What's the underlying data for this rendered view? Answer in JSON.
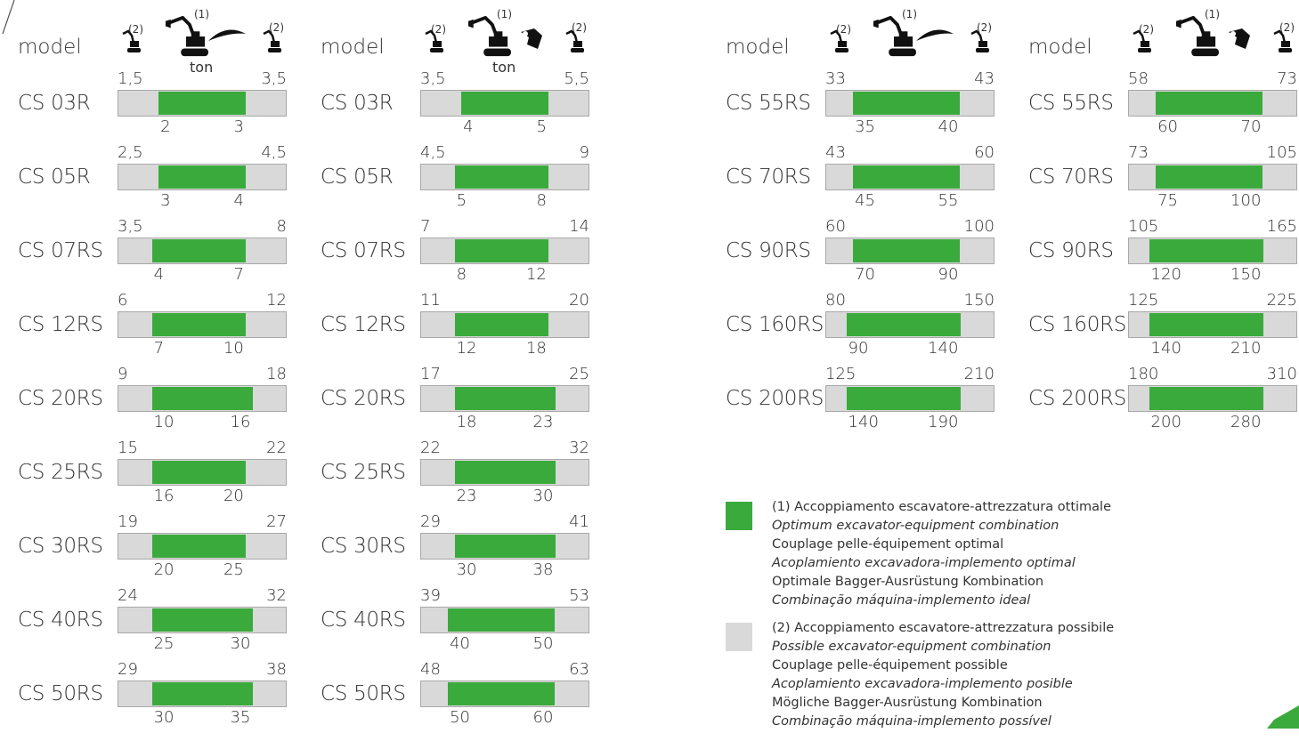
{
  "colors": {
    "optimal": "#3aaa3c",
    "possible": "#d9d9d9"
  },
  "blocks": [
    {
      "header": {
        "model_label": "model",
        "unit": "ton",
        "note_left": "(2)",
        "note_center": "(1)",
        "note_right": "(2)",
        "tool_icon": "breaker-icon"
      },
      "scale": [
        1,
        3
      ],
      "rows": [
        {
          "model": "CS 03R",
          "min": "1,5",
          "max": "3,5",
          "opt_min": "2",
          "opt_max": "3",
          "fill": [
            0.24,
            0.76
          ]
        },
        {
          "model": "CS 05R",
          "min": "2,5",
          "max": "4,5",
          "opt_min": "3",
          "opt_max": "4",
          "fill": [
            0.24,
            0.76
          ]
        },
        {
          "model": "CS 07RS",
          "min": "3,5",
          "max": "8",
          "opt_min": "4",
          "opt_max": "7",
          "fill": [
            0.2,
            0.76
          ]
        },
        {
          "model": "CS 12RS",
          "min": "6",
          "max": "12",
          "opt_min": "7",
          "opt_max": "10",
          "fill": [
            0.2,
            0.76
          ]
        },
        {
          "model": "CS 20RS",
          "min": "9",
          "max": "18",
          "opt_min": "10",
          "opt_max": "16",
          "fill": [
            0.2,
            0.8
          ]
        },
        {
          "model": "CS 25RS",
          "min": "15",
          "max": "22",
          "opt_min": "16",
          "opt_max": "20",
          "fill": [
            0.2,
            0.76
          ]
        },
        {
          "model": "CS 30RS",
          "min": "19",
          "max": "27",
          "opt_min": "20",
          "opt_max": "25",
          "fill": [
            0.2,
            0.76
          ]
        },
        {
          "model": "CS 40RS",
          "min": "24",
          "max": "32",
          "opt_min": "25",
          "opt_max": "30",
          "fill": [
            0.2,
            0.8
          ]
        },
        {
          "model": "CS 50RS",
          "min": "29",
          "max": "38",
          "opt_min": "30",
          "opt_max": "35",
          "fill": [
            0.2,
            0.8
          ]
        }
      ]
    },
    {
      "header": {
        "model_label": "model",
        "unit": "ton",
        "note_left": "(2)",
        "note_center": "(1)",
        "note_right": "(2)",
        "tool_icon": "crusher-bucket-icon"
      },
      "rows": [
        {
          "model": "CS 03R",
          "min": "3,5",
          "max": "5,5",
          "opt_min": "4",
          "opt_max": "5",
          "fill": [
            0.24,
            0.76
          ]
        },
        {
          "model": "CS 05R",
          "min": "4,5",
          "max": "9",
          "opt_min": "5",
          "opt_max": "8",
          "fill": [
            0.2,
            0.76
          ]
        },
        {
          "model": "CS 07RS",
          "min": "7",
          "max": "14",
          "opt_min": "8",
          "opt_max": "12",
          "fill": [
            0.2,
            0.76
          ]
        },
        {
          "model": "CS 12RS",
          "min": "11",
          "max": "20",
          "opt_min": "12",
          "opt_max": "18",
          "fill": [
            0.2,
            0.76
          ]
        },
        {
          "model": "CS 20RS",
          "min": "17",
          "max": "25",
          "opt_min": "18",
          "opt_max": "23",
          "fill": [
            0.2,
            0.8
          ]
        },
        {
          "model": "CS 25RS",
          "min": "22",
          "max": "32",
          "opt_min": "23",
          "opt_max": "30",
          "fill": [
            0.2,
            0.8
          ]
        },
        {
          "model": "CS 30RS",
          "min": "29",
          "max": "41",
          "opt_min": "30",
          "opt_max": "38",
          "fill": [
            0.2,
            0.8
          ]
        },
        {
          "model": "CS 40RS",
          "min": "39",
          "max": "53",
          "opt_min": "40",
          "opt_max": "50",
          "fill": [
            0.16,
            0.8
          ]
        },
        {
          "model": "CS 50RS",
          "min": "48",
          "max": "63",
          "opt_min": "50",
          "opt_max": "60",
          "fill": [
            0.16,
            0.8
          ]
        }
      ]
    },
    {
      "header": {
        "model_label": "model",
        "unit": "",
        "note_left": "(2)",
        "note_center": "(1)",
        "note_right": "(2)",
        "tool_icon": "breaker-icon"
      },
      "rows": [
        {
          "model": "CS 55RS",
          "min": "33",
          "max": "43",
          "opt_min": "35",
          "opt_max": "40",
          "fill": [
            0.16,
            0.8
          ]
        },
        {
          "model": "CS 70RS",
          "min": "43",
          "max": "60",
          "opt_min": "45",
          "opt_max": "55",
          "fill": [
            0.16,
            0.8
          ]
        },
        {
          "model": "CS 90RS",
          "min": "60",
          "max": "100",
          "opt_min": "70",
          "opt_max": "90",
          "fill": [
            0.16,
            0.8
          ]
        },
        {
          "model": "CS 160RS",
          "min": "80",
          "max": "150",
          "opt_min": "90",
          "opt_max": "140",
          "fill": [
            0.12,
            0.8
          ]
        },
        {
          "model": "CS 200RS",
          "min": "125",
          "max": "210",
          "opt_min": "140",
          "opt_max": "190",
          "fill": [
            0.12,
            0.8
          ]
        }
      ]
    },
    {
      "header": {
        "model_label": "model",
        "unit": "",
        "note_left": "(2)",
        "note_center": "(1)",
        "note_right": "(2)",
        "tool_icon": "crusher-bucket-icon"
      },
      "rows": [
        {
          "model": "CS 55RS",
          "min": "58",
          "max": "73",
          "opt_min": "60",
          "opt_max": "70",
          "fill": [
            0.16,
            0.8
          ]
        },
        {
          "model": "CS 70RS",
          "min": "73",
          "max": "105",
          "opt_min": "75",
          "opt_max": "100",
          "fill": [
            0.16,
            0.8
          ]
        },
        {
          "model": "CS 90RS",
          "min": "105",
          "max": "165",
          "opt_min": "120",
          "opt_max": "150",
          "fill": [
            0.12,
            0.8
          ]
        },
        {
          "model": "CS 160RS",
          "min": "125",
          "max": "225",
          "opt_min": "140",
          "opt_max": "210",
          "fill": [
            0.12,
            0.8
          ]
        },
        {
          "model": "CS 200RS",
          "min": "180",
          "max": "310",
          "opt_min": "200",
          "opt_max": "280",
          "fill": [
            0.12,
            0.8
          ]
        }
      ]
    }
  ],
  "legend": {
    "optimal": {
      "lines": [
        {
          "text": "(1) Accoppiamento escavatore-attrezzatura ottimale",
          "italic": false
        },
        {
          "text": "Optimum excavator-equipment combination",
          "italic": true
        },
        {
          "text": "Couplage pelle-équipement optimal",
          "italic": false
        },
        {
          "text": "Acoplamiento excavadora-implemento optimal",
          "italic": true
        },
        {
          "text": "Optimale Bagger-Ausrüstung Kombination",
          "italic": false
        },
        {
          "text": "Combinação máquina-implemento ideal",
          "italic": true
        }
      ]
    },
    "possible": {
      "lines": [
        {
          "text": "(2) Accoppiamento escavatore-attrezzatura possibile",
          "italic": false
        },
        {
          "text": "Possible excavator-equipment combination",
          "italic": true
        },
        {
          "text": "Couplage pelle-équipement possible",
          "italic": false
        },
        {
          "text": "Acoplamiento excavadora-implemento posible",
          "italic": true
        },
        {
          "text": "Mögliche Bagger-Ausrüstung Kombination",
          "italic": false
        },
        {
          "text": "Combinação máquina-implemento possível",
          "italic": true
        }
      ]
    }
  }
}
